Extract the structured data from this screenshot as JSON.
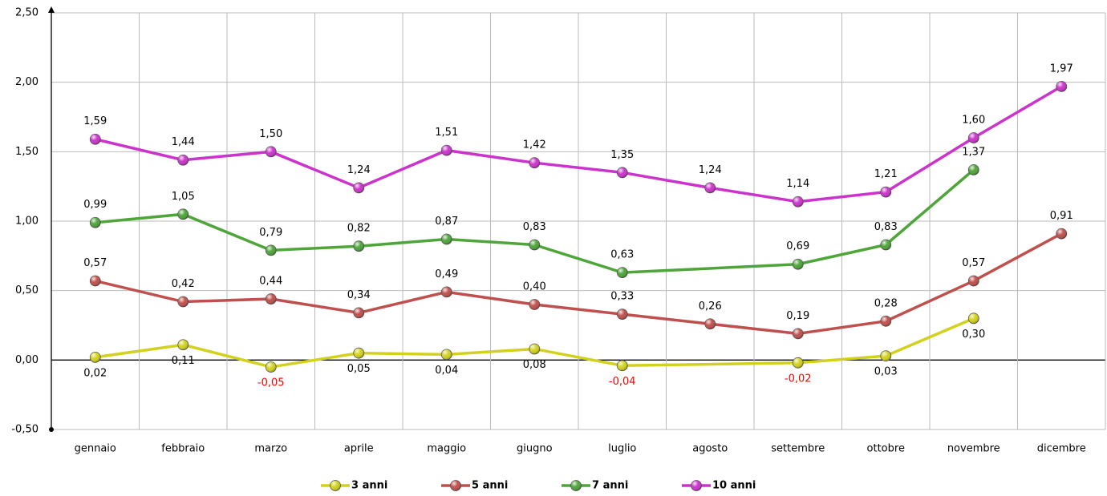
{
  "chart_data": {
    "type": "line",
    "categories": [
      "gennaio",
      "febbraio",
      "marzo",
      "aprile",
      "maggio",
      "giugno",
      "luglio",
      "agosto",
      "settembre",
      "ottobre",
      "novembre",
      "dicembre"
    ],
    "series": [
      {
        "name": "3 anni",
        "color": "#d2d21e",
        "values": [
          0.02,
          0.11,
          -0.05,
          0.05,
          0.04,
          0.08,
          -0.04,
          null,
          -0.02,
          0.03,
          0.3,
          null
        ],
        "value_labels": [
          "0,02",
          "0,11",
          "-0,05",
          "0,05",
          "0,04",
          "0,08",
          "-0,04",
          null,
          "-0,02",
          "0,03",
          "0,30",
          null
        ]
      },
      {
        "name": "5 anni",
        "color": "#c0504d",
        "values": [
          0.57,
          0.42,
          0.44,
          0.34,
          0.49,
          0.4,
          0.33,
          0.26,
          0.19,
          0.28,
          0.57,
          0.91
        ],
        "value_labels": [
          "0,57",
          "0,42",
          "0,44",
          "0,34",
          "0,49",
          "0,40",
          "0,33",
          "0,26",
          "0,19",
          "0,28",
          "0,57",
          "0,91"
        ]
      },
      {
        "name": "7 anni",
        "color": "#4ea53a",
        "values": [
          0.99,
          1.05,
          0.79,
          0.82,
          0.87,
          0.83,
          0.63,
          null,
          0.69,
          0.83,
          1.37,
          null
        ],
        "value_labels": [
          "0,99",
          "1,05",
          "0,79",
          "0,82",
          "0,87",
          "0,83",
          "0,63",
          null,
          "0,69",
          "0,83",
          "1,37",
          null
        ]
      },
      {
        "name": "10 anni",
        "color": "#cc33cc",
        "values": [
          1.59,
          1.44,
          1.5,
          1.24,
          1.51,
          1.42,
          1.35,
          1.24,
          1.14,
          1.21,
          1.6,
          1.97
        ],
        "value_labels": [
          "1,59",
          "1,44",
          "1,50",
          "1,24",
          "1,51",
          "1,42",
          "1,35",
          "1,24",
          "1,14",
          "1,21",
          "1,60",
          "1,97"
        ]
      }
    ],
    "ylim": [
      -0.5,
      2.5
    ],
    "yticks": [
      {
        "value": -0.5,
        "label": "-0,50"
      },
      {
        "value": 0,
        "label": "0,00"
      },
      {
        "value": 0.5,
        "label": "0,50"
      },
      {
        "value": 1,
        "label": "1,00"
      },
      {
        "value": 1.5,
        "label": "1,50"
      },
      {
        "value": 2,
        "label": "2,00"
      },
      {
        "value": 2.5,
        "label": "2,50"
      }
    ],
    "grid": true,
    "connect_gaps": true,
    "negative_label_color": "#ff0000",
    "legend": "bottom"
  }
}
